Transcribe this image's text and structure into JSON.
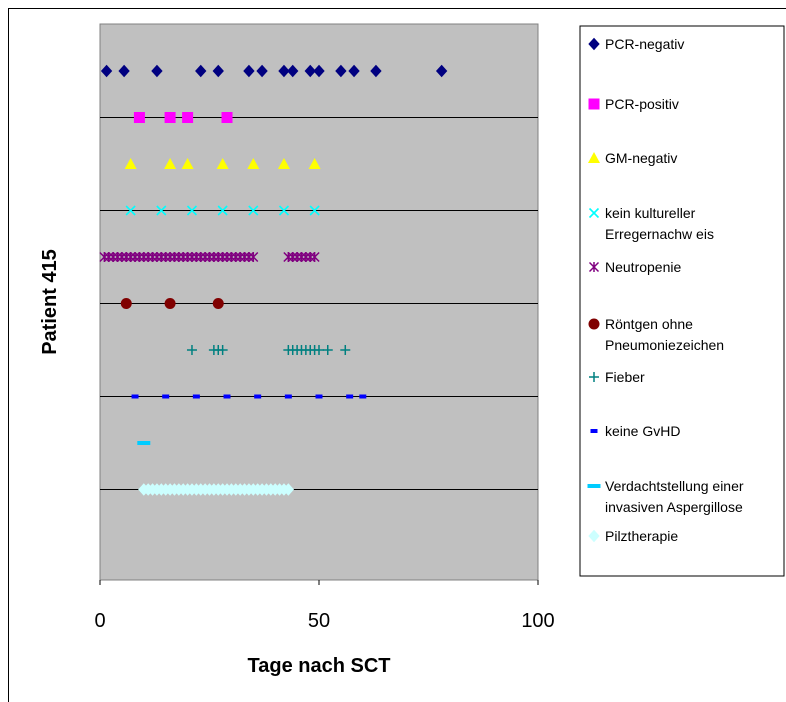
{
  "chart_data": {
    "type": "scatter",
    "title": "",
    "xlabel": "Tage nach SCT",
    "ylabel": "Patient 415",
    "xlim": [
      0,
      100
    ],
    "xticks": [
      "0",
      "50",
      "100"
    ],
    "grid": "horizontal lines at row separators",
    "legend_position": "right",
    "plot_background": "#c0c0c0",
    "series": [
      {
        "name": "PCR-negativ",
        "marker": "diamond",
        "color": "#000080",
        "x": [
          1.5,
          5.5,
          13,
          23,
          27,
          34,
          37,
          42,
          44,
          48,
          50,
          55,
          58,
          63,
          78
        ],
        "y": 10
      },
      {
        "name": "PCR-positiv",
        "marker": "square",
        "color": "#ff00ff",
        "x": [
          9,
          16,
          20,
          29
        ],
        "y": 9
      },
      {
        "name": "GM-negativ",
        "marker": "triangle",
        "color": "#ffff00",
        "x": [
          7,
          16,
          20,
          28,
          35,
          42,
          49
        ],
        "y": 8
      },
      {
        "name": "kein kultureller Erregernachw eis",
        "marker": "x",
        "color": "#00ffff",
        "x": [
          7,
          14,
          21,
          28,
          35,
          42,
          49
        ],
        "y": 7
      },
      {
        "name": "Neutropenie",
        "marker": "star",
        "color": "#800080",
        "x": [
          1,
          2,
          3,
          4,
          5,
          6,
          7,
          8,
          9,
          10,
          11,
          12,
          13,
          14,
          15,
          16,
          17,
          18,
          19,
          20,
          21,
          22,
          23,
          24,
          25,
          26,
          27,
          28,
          29,
          30,
          31,
          32,
          33,
          34,
          35,
          43,
          44,
          45,
          46,
          47,
          48,
          49
        ],
        "y": 6
      },
      {
        "name": "Röntgen ohne Pneumoniezeichen",
        "marker": "circle",
        "color": "#800000",
        "x": [
          6,
          16,
          27
        ],
        "y": 5
      },
      {
        "name": "Fieber",
        "marker": "plus",
        "color": "#008080",
        "x": [
          21,
          26,
          27,
          28,
          43,
          44,
          45,
          46,
          47,
          48,
          49,
          50,
          52,
          56
        ],
        "y": 4
      },
      {
        "name": "keine GvHD",
        "marker": "dash",
        "color": "#0000ff",
        "x": [
          8,
          15,
          22,
          29,
          36,
          43,
          50,
          57,
          60
        ],
        "y": 3
      },
      {
        "name": "Verdachtstellung einer invasiven Aspergillose",
        "marker": "wide-dash",
        "color": "#00ccff",
        "x": [
          10
        ],
        "y": 2
      },
      {
        "name": "Pilztherapie",
        "marker": "diamond",
        "color": "#ccffff",
        "x": [
          10,
          11,
          12,
          13,
          14,
          15,
          16,
          17,
          18,
          19,
          20,
          21,
          22,
          23,
          24,
          25,
          26,
          27,
          28,
          29,
          30,
          31,
          32,
          33,
          34,
          35,
          36,
          37,
          38,
          39,
          40,
          41,
          42,
          43
        ],
        "y": 1
      }
    ]
  }
}
